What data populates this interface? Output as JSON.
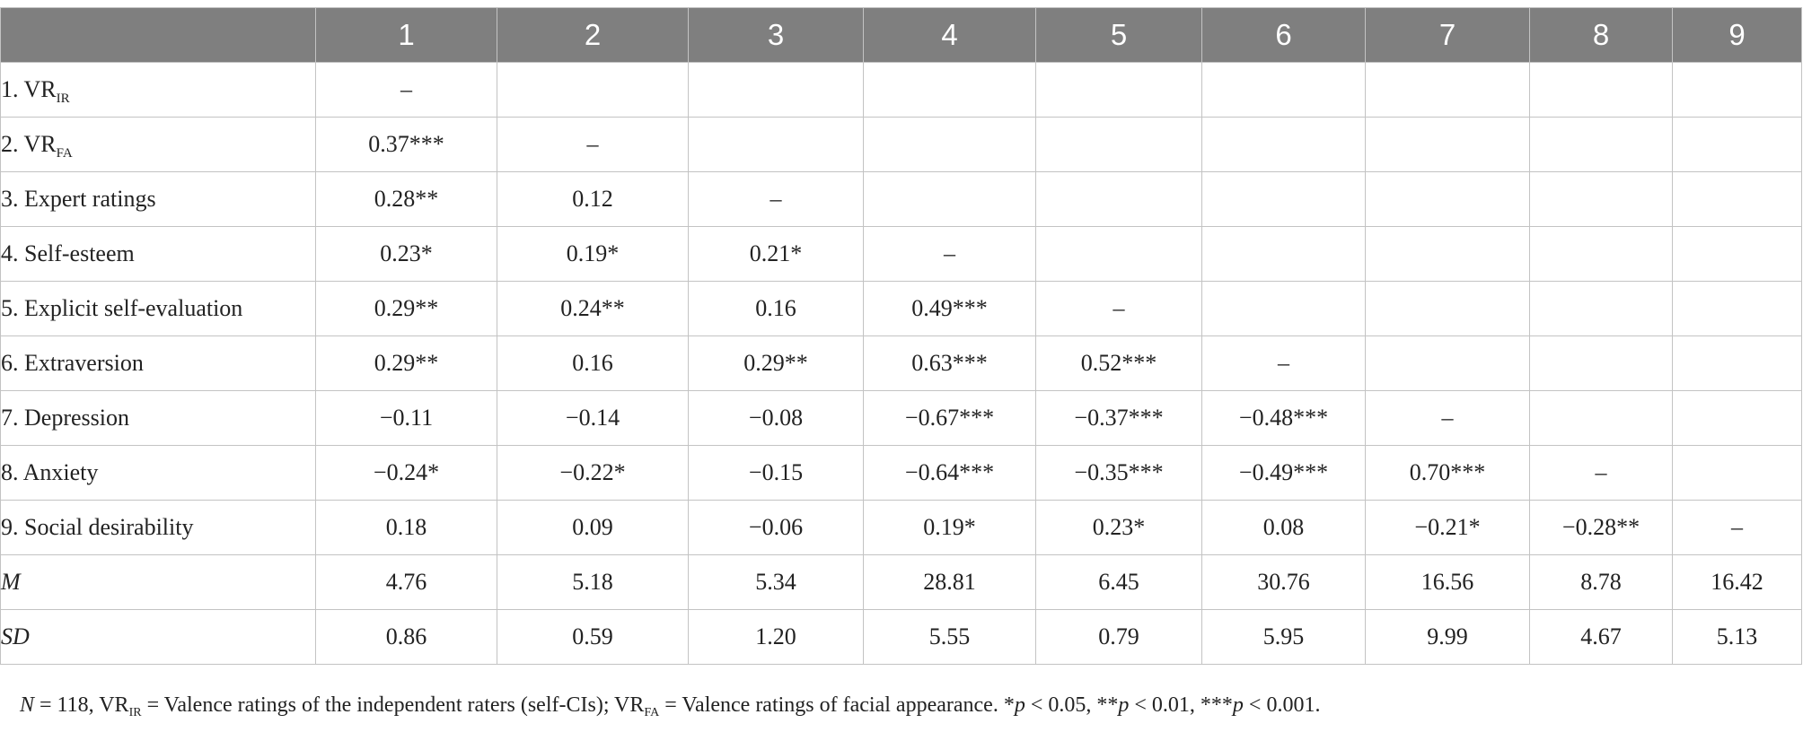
{
  "table": {
    "columns": [
      "",
      "1",
      "2",
      "3",
      "4",
      "5",
      "6",
      "7",
      "8",
      "9"
    ],
    "rows": [
      {
        "label": "1. VR",
        "sub": "IR",
        "cells": [
          "–",
          "",
          "",
          "",
          "",
          "",
          "",
          "",
          ""
        ]
      },
      {
        "label": "2. VR",
        "sub": "FA",
        "cells": [
          "0.37***",
          "–",
          "",
          "",
          "",
          "",
          "",
          "",
          ""
        ]
      },
      {
        "label": "3. Expert ratings",
        "cells": [
          "0.28**",
          "0.12",
          "–",
          "",
          "",
          "",
          "",
          "",
          ""
        ]
      },
      {
        "label": "4. Self-esteem",
        "cells": [
          "0.23*",
          "0.19*",
          "0.21*",
          "–",
          "",
          "",
          "",
          "",
          ""
        ]
      },
      {
        "label": "5. Explicit self-evaluation",
        "cells": [
          "0.29**",
          "0.24**",
          "0.16",
          "0.49***",
          "–",
          "",
          "",
          "",
          ""
        ]
      },
      {
        "label": "6. Extraversion",
        "cells": [
          "0.29**",
          "0.16",
          "0.29**",
          "0.63***",
          "0.52***",
          "–",
          "",
          "",
          ""
        ]
      },
      {
        "label": "7. Depression",
        "cells": [
          "−0.11",
          "−0.14",
          "−0.08",
          "−0.67***",
          "−0.37***",
          "−0.48***",
          "–",
          "",
          ""
        ]
      },
      {
        "label": "8. Anxiety",
        "cells": [
          "−0.24*",
          "−0.22*",
          "−0.15",
          "−0.64***",
          "−0.35***",
          "−0.49***",
          "0.70***",
          "–",
          ""
        ]
      },
      {
        "label": "9. Social desirability",
        "cells": [
          "0.18",
          "0.09",
          "−0.06",
          "0.19*",
          "0.23*",
          "0.08",
          "−0.21*",
          "−0.28**",
          "–"
        ]
      },
      {
        "label": "M",
        "italic": true,
        "cells": [
          "4.76",
          "5.18",
          "5.34",
          "28.81",
          "6.45",
          "30.76",
          "16.56",
          "8.78",
          "16.42"
        ]
      },
      {
        "label": "SD",
        "italic": true,
        "cells": [
          "0.86",
          "0.59",
          "1.20",
          "5.55",
          "0.79",
          "5.95",
          "9.99",
          "4.67",
          "5.13"
        ]
      }
    ]
  },
  "note": {
    "n_label": "N",
    "n_text": " = 118, VR",
    "sub_ir": "IR",
    "ir_text": " = Valence ratings of the independent raters (self-CIs); VR",
    "sub_fa": "FA",
    "fa_text": " = Valence ratings of facial appearance. ",
    "sig1_star": "*",
    "p1": "p",
    "sig1": " < 0.05, ",
    "sig2_star": "**",
    "p2": "p",
    "sig2": " < 0.01, ",
    "sig3_star": "***",
    "p3": "p",
    "sig3": " < 0.001."
  }
}
